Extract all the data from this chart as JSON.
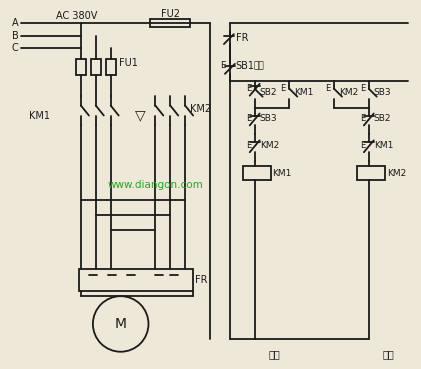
{
  "background_color": "#ede8d8",
  "line_color": "#1a1a1a",
  "text_color": "#1a1a1a",
  "watermark": "www.diangon.com",
  "watermark_color": "#22aa22",
  "labels": {
    "ac": "AC 380V",
    "fu2": "FU2",
    "fu1": "FU1",
    "fr_ctrl": "FR",
    "sb1": "SB1",
    "sb1_note": "停车",
    "sb2_left": "SB2",
    "km1_parallel": "KM1",
    "sb3_right": "SB3",
    "km2_parallel": "KM2",
    "sb3_left": "SB3",
    "sb2_right": "SB2",
    "km2_interlock": "KM2",
    "km1_interlock": "KM1",
    "km1_coil": "KM1",
    "km2_coil": "KM2",
    "km1_main": "KM1",
    "km2_main": "KM2",
    "fr_main": "FR",
    "motor": "M",
    "forward": "正转",
    "reverse": "反转",
    "A": "A",
    "B": "B",
    "C": "C"
  }
}
